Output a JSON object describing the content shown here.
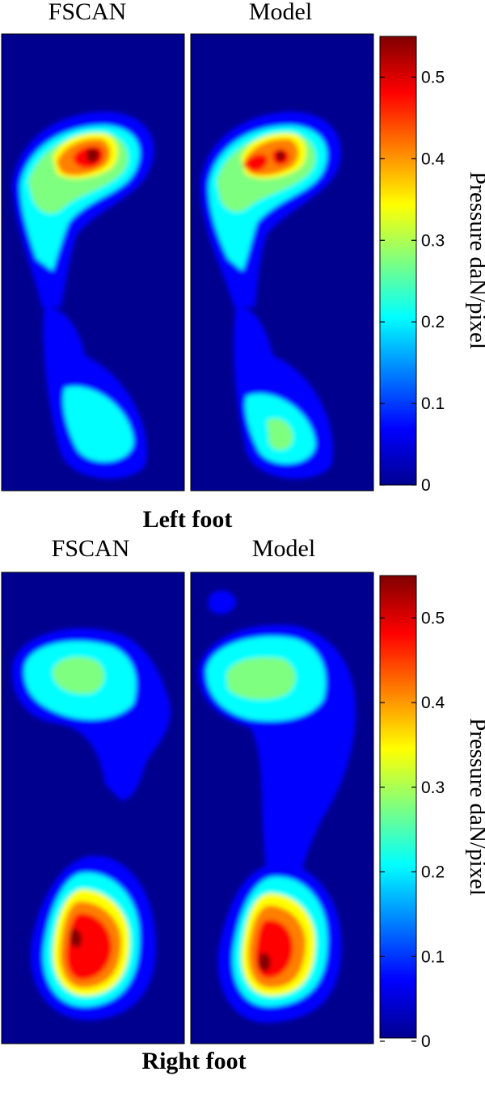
{
  "chart_data": [
    {
      "type": "heatmap",
      "section_label": "Left foot",
      "colorbar": {
        "label": "Pressure daN/pixel",
        "range": [
          0,
          0.55
        ],
        "ticks": [
          "0",
          "0.1",
          "0.2",
          "0.3",
          "0.4",
          "0.5"
        ],
        "tick_values": [
          0,
          0.1,
          0.2,
          0.3,
          0.4,
          0.5
        ],
        "colormap": "jet",
        "colors": [
          "#00008f",
          "#0000ff",
          "#00ffff",
          "#ffff00",
          "#ff0000",
          "#800000"
        ]
      },
      "panels": [
        {
          "title": "FSCAN",
          "peak_regions": [
            {
              "region": "forefoot",
              "peak": 0.52
            },
            {
              "region": "forefoot-medial",
              "peak": 0.25
            },
            {
              "region": "midfoot",
              "peak": 0.12
            },
            {
              "region": "heel",
              "peak": 0.22
            }
          ]
        },
        {
          "title": "Model",
          "peak_regions": [
            {
              "region": "forefoot",
              "peak": 0.52
            },
            {
              "region": "forefoot-medial",
              "peak": 0.22
            },
            {
              "region": "midfoot",
              "peak": 0.11
            },
            {
              "region": "heel",
              "peak": 0.26
            }
          ]
        }
      ]
    },
    {
      "type": "heatmap",
      "section_label": "Right foot",
      "colorbar": {
        "label": "Pressure daN/pixel",
        "range": [
          0,
          0.55
        ],
        "ticks": [
          "0",
          "0.1",
          "0.2",
          "0.3",
          "0.4",
          "0.5"
        ],
        "tick_values": [
          0,
          0.1,
          0.2,
          0.3,
          0.4,
          0.5
        ],
        "colormap": "jet",
        "colors": [
          "#00008f",
          "#0000ff",
          "#00ffff",
          "#ffff00",
          "#ff0000",
          "#800000"
        ]
      },
      "panels": [
        {
          "title": "FSCAN",
          "peak_regions": [
            {
              "region": "toe",
              "peak": 0.03
            },
            {
              "region": "forefoot",
              "peak": 0.31
            },
            {
              "region": "midfoot",
              "peak": 0.09
            },
            {
              "region": "heel",
              "peak": 0.53
            }
          ]
        },
        {
          "title": "Model",
          "peak_regions": [
            {
              "region": "toe",
              "peak": 0.14
            },
            {
              "region": "forefoot",
              "peak": 0.31
            },
            {
              "region": "midfoot",
              "peak": 0.09
            },
            {
              "region": "heel",
              "peak": 0.52
            }
          ]
        }
      ]
    }
  ]
}
